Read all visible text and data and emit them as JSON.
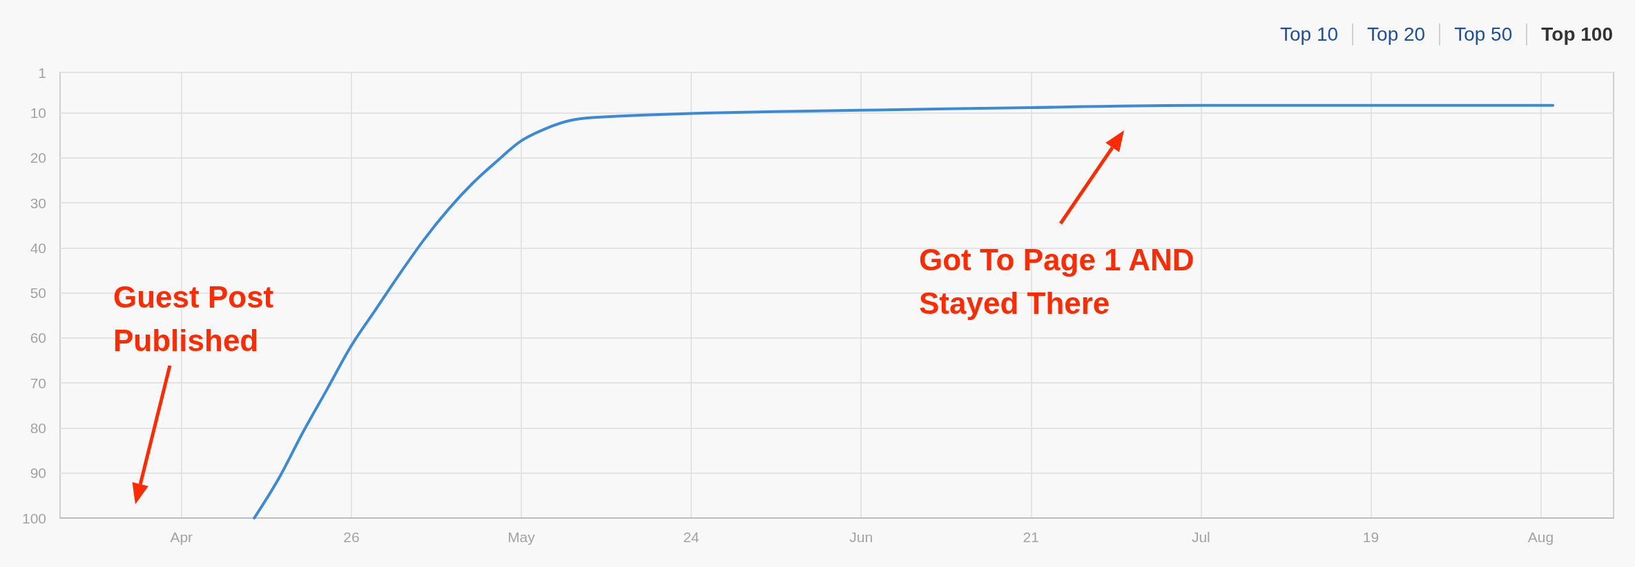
{
  "chart_data": {
    "type": "line",
    "x": [
      "--04-18",
      "--04-20",
      "--04-22",
      "--04-24",
      "--04-26",
      "--04-28",
      "--04-30",
      "--05-02",
      "--05-04",
      "--05-06",
      "--05-08",
      "--05-10",
      "--05-12",
      "--05-14",
      "--05-16",
      "--05-24",
      "--06-07",
      "--06-21",
      "--07-05",
      "--07-19",
      "--08-03"
    ],
    "series": [
      {
        "color": "#3b8ad9",
        "values": [
          100,
          91.3,
          81,
          71.4,
          61.7,
          53.7,
          45.7,
          38.1,
          31.4,
          25.6,
          20.7,
          16.2,
          13.5,
          11.7,
          11,
          10.1,
          9.4,
          8.8,
          8.3,
          8.3,
          8.3
        ]
      }
    ],
    "xlim": [
      "--04-02",
      "--08-08"
    ],
    "xticks": [
      {
        "value": "--04-12",
        "label": "Apr"
      },
      {
        "value": "--04-26",
        "label": "26"
      },
      {
        "value": "--05-10",
        "label": "May"
      },
      {
        "value": "--05-24",
        "label": "24"
      },
      {
        "value": "--06-07",
        "label": "Jun"
      },
      {
        "value": "--06-21",
        "label": "21"
      },
      {
        "value": "--07-05",
        "label": "Jul"
      },
      {
        "value": "--07-19",
        "label": "19"
      },
      {
        "value": "--08-02",
        "label": "Aug"
      }
    ],
    "ylim": [
      100,
      1
    ],
    "yticks": [
      1,
      10,
      20,
      30,
      40,
      50,
      60,
      70,
      80,
      90,
      100
    ],
    "grid": true,
    "marker": "none",
    "line_style": "solid",
    "annotations": [
      "Guest Post Published",
      "Got To Page 1 AND Stayed There",
      "Top 10",
      "Top 20",
      "Top 50",
      "Top 100"
    ]
  }
}
